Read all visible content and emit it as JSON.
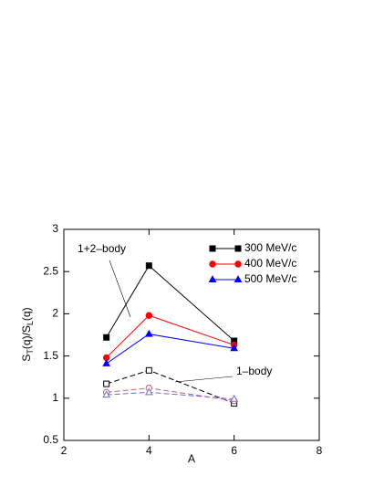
{
  "chart_data": {
    "type": "line",
    "xlabel": "A",
    "ylabel": [
      "S",
      "T",
      "(q)/S",
      "L",
      "(q)"
    ],
    "x": [
      3,
      4,
      6
    ],
    "xlim": [
      2,
      8
    ],
    "xticks": [
      2,
      4,
      6,
      8
    ],
    "ylim": [
      0.5,
      3
    ],
    "yticks": [
      0.5,
      1,
      1.5,
      2,
      2.5,
      3
    ],
    "series": [
      {
        "name": "300 MeV/c",
        "color": "#000000",
        "marker": "square",
        "filled": true,
        "dashed": false,
        "values": [
          1.72,
          2.57,
          1.68
        ]
      },
      {
        "name": "400 MeV/c",
        "color": "#ff0000",
        "marker": "circle",
        "filled": true,
        "dashed": false,
        "values": [
          1.48,
          1.98,
          1.63
        ]
      },
      {
        "name": "500 MeV/c",
        "color": "#0000ff",
        "marker": "triangle",
        "filled": true,
        "dashed": false,
        "values": [
          1.41,
          1.76,
          1.59
        ]
      },
      {
        "color": "#000000",
        "marker": "square",
        "filled": false,
        "dashed": true,
        "values": [
          1.17,
          1.33,
          0.94
        ]
      },
      {
        "color": "#c06080",
        "marker": "circle",
        "filled": false,
        "dashed": true,
        "values": [
          1.07,
          1.12,
          0.97
        ]
      },
      {
        "color": "#7070d0",
        "marker": "triangle",
        "filled": false,
        "dashed": true,
        "values": [
          1.04,
          1.07,
          0.99
        ]
      }
    ],
    "annotations": [
      "1+2–body",
      "1–body"
    ]
  }
}
